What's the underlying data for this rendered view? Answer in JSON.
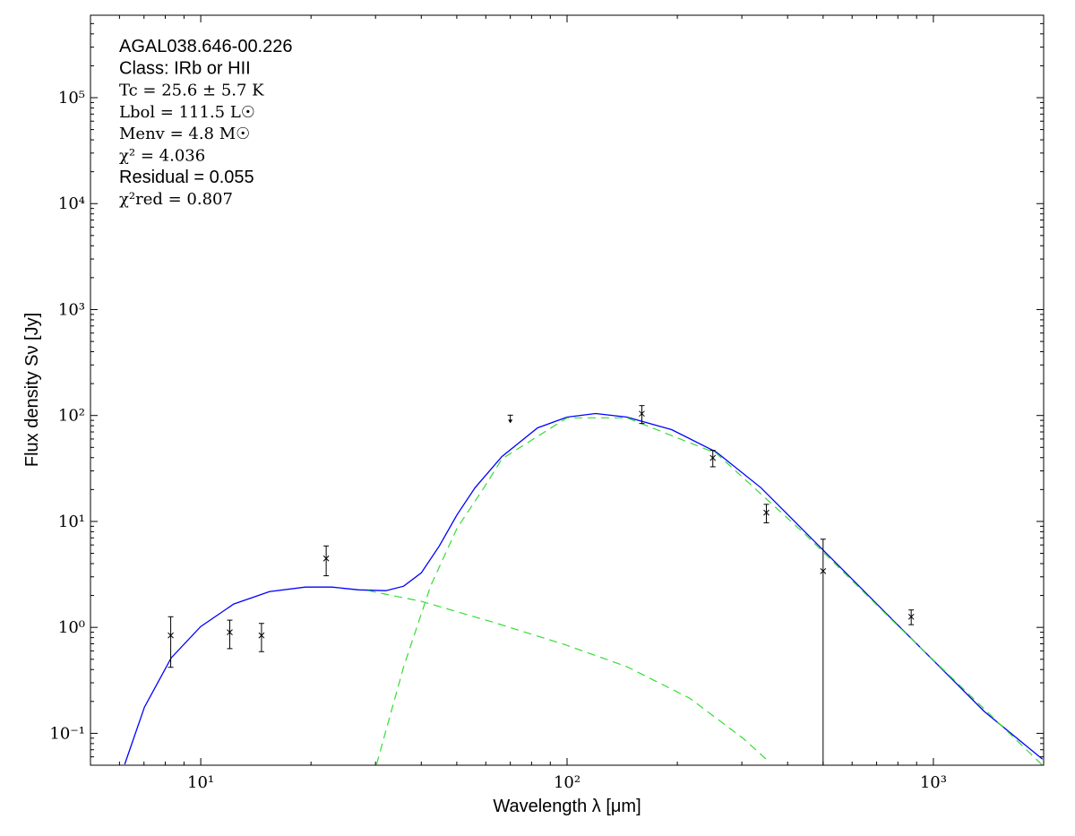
{
  "chart_data": {
    "type": "scatter",
    "xlabel": "Wavelength λ [μm]",
    "ylabel": "Flux density Sν [Jy]",
    "annotations": [
      "AGAL038.646-00.226",
      "Class: IRb or HII",
      "Tc = 25.6 ± 5.7 K",
      "Lbol = 111.5 L☉",
      "Menv = 4.8 M☉",
      "χ² = 4.036",
      "Residual = 0.055",
      "χ²red = 0.807"
    ],
    "xscale": "log",
    "yscale": "log",
    "xlim": [
      5,
      2000
    ],
    "ylim": [
      0.05,
      600000
    ],
    "xticks": [
      {
        "value": 10,
        "label": "10¹"
      },
      {
        "value": 100,
        "label": "10²"
      },
      {
        "value": 1000,
        "label": "10³"
      }
    ],
    "yticks": [
      {
        "value": 0.1,
        "label": "10⁻¹"
      },
      {
        "value": 1,
        "label": "10⁰"
      },
      {
        "value": 10,
        "label": "10¹"
      },
      {
        "value": 100,
        "label": "10²"
      },
      {
        "value": 1000,
        "label": "10³"
      },
      {
        "value": 10000,
        "label": "10⁴"
      },
      {
        "value": 100000,
        "label": "10⁵"
      }
    ],
    "xminorticks": [
      6,
      7,
      8,
      9,
      20,
      30,
      40,
      50,
      60,
      70,
      80,
      90,
      200,
      300,
      400,
      500,
      600,
      700,
      800,
      900
    ],
    "yminorticks": [
      0.06,
      0.07,
      0.08,
      0.09,
      0.2,
      0.3,
      0.4,
      0.5,
      0.6,
      0.7,
      0.8,
      0.9,
      2,
      3,
      4,
      5,
      6,
      7,
      8,
      9,
      20,
      30,
      40,
      50,
      60,
      70,
      80,
      90,
      200,
      300,
      400,
      500,
      600,
      700,
      800,
      900,
      2000,
      3000,
      4000,
      5000,
      6000,
      7000,
      8000,
      9000,
      20000,
      30000,
      40000,
      50000,
      60000,
      70000,
      80000,
      90000,
      200000,
      300000,
      400000,
      500000
    ],
    "points": {
      "color": "#000000",
      "x": [
        8.28,
        12,
        14.65,
        22,
        160,
        250,
        350,
        500,
        870
      ],
      "values": [
        0.84,
        0.9,
        0.84,
        4.47,
        104,
        39.8,
        12.1,
        3.4,
        1.26
      ],
      "errors": [
        0.42,
        0.27,
        0.25,
        1.4,
        20,
        7,
        2.4,
        3.4,
        0.2
      ]
    },
    "upper_limits": {
      "color": "#000000",
      "x": [
        70
      ],
      "values": [
        95
      ]
    },
    "lines": [
      {
        "color": "#0000ff",
        "dashed": false,
        "x": [
          6.2,
          7.02,
          8.31,
          10,
          12.3,
          15.4,
          19.3,
          22.8,
          27.0,
          32.0,
          35.8,
          40.0,
          44.8,
          50.1,
          56.1,
          66.4,
          83.1,
          100,
          119.7,
          145.7,
          192.9,
          255.5,
          338.2,
          447.9,
          593.2,
          785.6,
          1040,
          1377,
          1985
        ],
        "values": [
          0.051,
          0.177,
          0.516,
          1.02,
          1.66,
          2.18,
          2.4,
          2.4,
          2.26,
          2.22,
          2.45,
          3.27,
          5.87,
          11.6,
          20.8,
          41.0,
          76.4,
          96.6,
          104.4,
          96.6,
          73.5,
          45.2,
          20.8,
          7.86,
          2.97,
          1.12,
          0.425,
          0.161,
          0.057
        ]
      },
      {
        "color": "#33dd33",
        "dashed": true,
        "x": [
          28.6,
          40.0,
          62.8,
          98.3,
          145.7,
          215.9,
          302.4,
          357.9
        ],
        "values": [
          2.22,
          1.76,
          1.12,
          0.691,
          0.425,
          0.215,
          0.0897,
          0.053
        ]
      },
      {
        "color": "#33dd33",
        "dashed": true,
        "x": [
          30.2,
          35.8,
          42.4,
          50.1,
          59.3,
          66.4,
          100,
          145.7,
          255.5,
          447.9,
          785.6,
          1985
        ],
        "values": [
          0.051,
          0.425,
          2.45,
          8.66,
          20.8,
          39,
          95,
          95,
          44,
          7.5,
          1.1,
          0.05
        ]
      }
    ]
  }
}
